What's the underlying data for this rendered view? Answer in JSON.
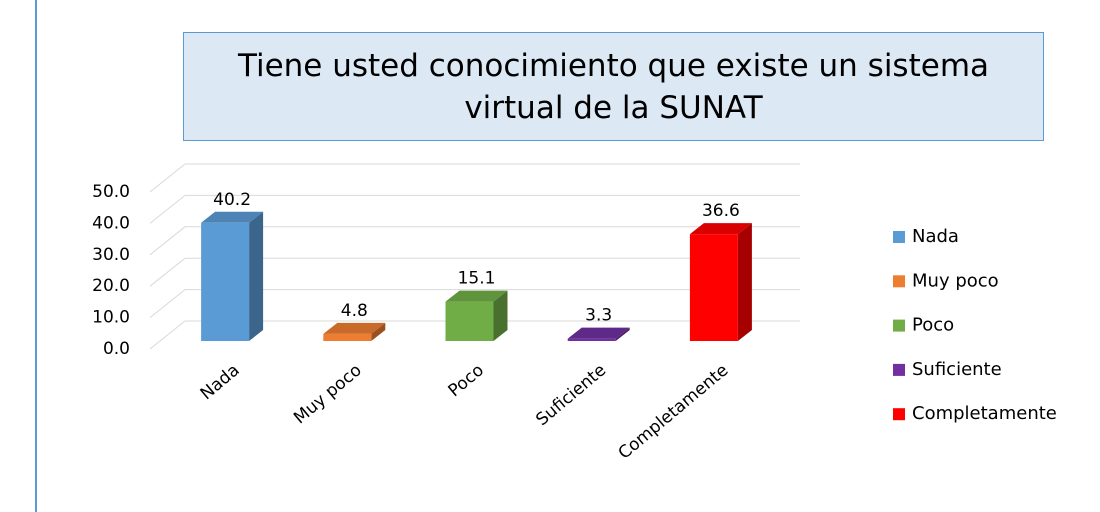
{
  "chart_data": {
    "type": "bar",
    "title": "Tiene usted conocimiento que existe un sistema virtual de la SUNAT",
    "categories": [
      "Nada",
      "Muy poco",
      "Poco",
      "Suficiente",
      "Completamente"
    ],
    "values": [
      40.2,
      4.8,
      15.1,
      3.3,
      36.6
    ],
    "colors": [
      "#5b9bd5",
      "#ed7d31",
      "#70ad47",
      "#7030a0",
      "#ff0000"
    ],
    "ylim": [
      0,
      50
    ],
    "yticks": [
      {
        "value": 0,
        "label": "0.0"
      },
      {
        "value": 10,
        "label": "10.0"
      },
      {
        "value": 20,
        "label": "20.0"
      },
      {
        "value": 30,
        "label": "30.0"
      },
      {
        "value": 40,
        "label": "40.0"
      },
      {
        "value": 50,
        "label": "50.0"
      }
    ],
    "grid": true,
    "legend": "right"
  }
}
